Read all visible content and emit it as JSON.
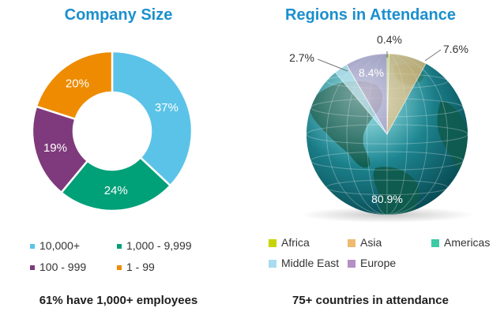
{
  "left": {
    "title": "Company Size",
    "summary": "61% have 1,000+ employees"
  },
  "right": {
    "title": "Regions in Attendance",
    "summary": "75+ countries in attendance"
  },
  "chart_data": [
    {
      "type": "pie",
      "variant": "donut",
      "title": "Company Size",
      "categories": [
        "10,000+",
        "1,000 - 9,999",
        "100 - 999",
        "1 - 99"
      ],
      "values": [
        37,
        24,
        19,
        20
      ],
      "labels": [
        "37%",
        "24%",
        "19%",
        "20%"
      ],
      "colors": [
        "#5bc3e8",
        "#00a078",
        "#7e3a7c",
        "#ee8b00"
      ],
      "legend": "bottom"
    },
    {
      "type": "pie",
      "title": "Regions in Attendance",
      "categories": [
        "Africa",
        "Asia",
        "Americas",
        "Middle East",
        "Europe"
      ],
      "values": [
        0.4,
        7.6,
        80.9,
        2.7,
        8.4
      ],
      "labels": [
        "0.4%",
        "7.6%",
        "80.9%",
        "2.7%",
        "8.4%"
      ],
      "colors": [
        "#c8d400",
        "#eeba70",
        "#3ec9a7",
        "#a8dcf0",
        "#b58fc4"
      ],
      "background": "globe",
      "legend": "bottom"
    }
  ]
}
